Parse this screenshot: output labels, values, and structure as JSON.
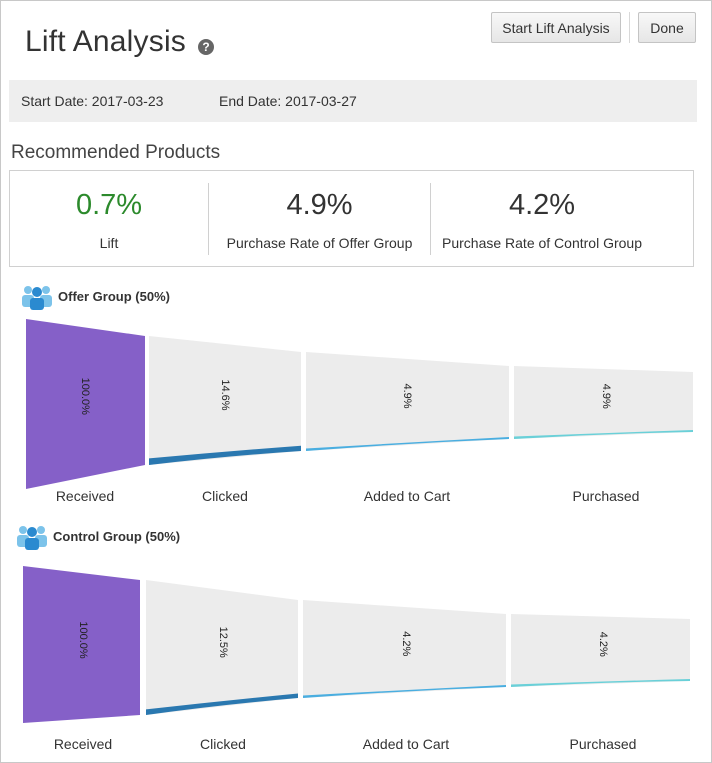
{
  "header": {
    "title": "Lift Analysis",
    "help_icon": "?",
    "start_button": "Start Lift Analysis",
    "done_button": "Done"
  },
  "dates": {
    "start": "Start Date: 2017-03-23",
    "end": "End Date: 2017-03-27"
  },
  "section_title": "Recommended Products",
  "kpis": [
    {
      "value": "0.7%",
      "label": "Lift",
      "color": "#2c8a2c"
    },
    {
      "value": "4.9%",
      "label": "Purchase Rate of Offer Group",
      "color": "#333333"
    },
    {
      "value": "4.2%",
      "label": "Purchase Rate of Control Group",
      "color": "#333333"
    }
  ],
  "groups": {
    "offer": {
      "title": "Offer Group (50%)",
      "icon": "users-icon"
    },
    "control": {
      "title": "Control Group (50%)",
      "icon": "users-icon"
    }
  },
  "colors": {
    "received": "#8560c8",
    "stage_bg": "#ececec",
    "clicked": "#2a78b0",
    "added_to_cart": "#4aaee0",
    "purchased": "#6ad0d8",
    "kpi_positive": "#2c8a2c"
  },
  "chart_data": [
    {
      "type": "funnel",
      "title": "Offer Group (50%)",
      "categories": [
        "Received",
        "Clicked",
        "Added to Cart",
        "Purchased"
      ],
      "values": [
        100.0,
        14.6,
        4.9,
        4.9
      ],
      "labels": [
        "100.0%",
        "14.6%",
        "4.9%",
        "4.9%"
      ]
    },
    {
      "type": "funnel",
      "title": "Control Group (50%)",
      "categories": [
        "Received",
        "Clicked",
        "Added to Cart",
        "Purchased"
      ],
      "values": [
        100.0,
        12.5,
        4.2,
        4.2
      ],
      "labels": [
        "100.0%",
        "12.5%",
        "4.2%",
        "4.2%"
      ]
    }
  ]
}
